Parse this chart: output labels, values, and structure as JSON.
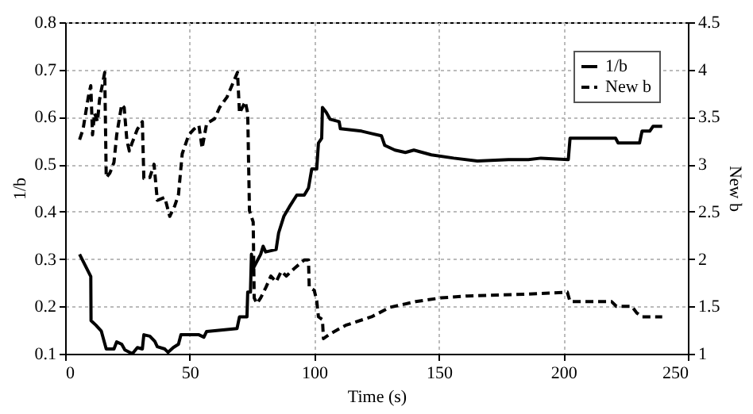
{
  "chart_data": {
    "type": "line",
    "xlabel": "Time (s)",
    "ylabel": "1/b",
    "y2label": "New b",
    "xlim": [
      0,
      250
    ],
    "xticks": [
      0,
      50,
      100,
      150,
      200,
      250
    ],
    "ylim": [
      0.1,
      0.8
    ],
    "yticks": [
      0.1,
      0.2,
      0.3,
      0.4,
      0.5,
      0.6,
      0.7,
      0.8
    ],
    "y2lim": [
      1,
      4.5
    ],
    "y2ticks": [
      1,
      1.5,
      2,
      2.5,
      3,
      3.5,
      4,
      4.5
    ],
    "grid": true,
    "legend": "top right",
    "series": [
      {
        "name": "1/b",
        "color": "#000000",
        "line_style": "solid",
        "x": [
          5.8,
          10.3,
          10.4,
          12.4,
          14.5,
          16.5,
          19.6,
          20.7,
          22.7,
          24,
          27,
          29,
          31,
          31.6,
          34,
          36,
          37,
          40,
          41.3,
          43.4,
          45.5,
          46.5,
          53.7,
          55.7,
          56.8,
          69,
          70,
          73,
          73.3,
          74.4,
          74.8,
          75.5,
          78.5,
          79.5,
          80.5,
          84.7,
          85.7,
          87.8,
          90,
          93,
          96,
          97.7,
          99,
          101,
          101.7,
          103,
          103.3,
          104.8,
          106.4,
          110,
          110.5,
          119,
          123,
          127,
          128.3,
          132.4,
          136.6,
          140,
          147,
          156,
          165.5,
          178,
          186,
          191,
          202,
          202.7,
          215,
          221,
          222,
          230.6,
          231.6,
          234.7,
          236,
          239.7
        ],
        "values": [
          0.31,
          0.263,
          0.17,
          0.16,
          0.148,
          0.11,
          0.11,
          0.125,
          0.12,
          0.108,
          0.1,
          0.113,
          0.11,
          0.14,
          0.137,
          0.126,
          0.115,
          0.11,
          0.103,
          0.113,
          0.12,
          0.14,
          0.14,
          0.135,
          0.147,
          0.153,
          0.178,
          0.178,
          0.23,
          0.23,
          0.31,
          0.28,
          0.31,
          0.327,
          0.315,
          0.32,
          0.355,
          0.39,
          0.41,
          0.435,
          0.435,
          0.45,
          0.49,
          0.49,
          0.545,
          0.555,
          0.62,
          0.61,
          0.595,
          0.59,
          0.575,
          0.57,
          0.565,
          0.56,
          0.54,
          0.53,
          0.525,
          0.53,
          0.52,
          0.513,
          0.507,
          0.51,
          0.51,
          0.513,
          0.51,
          0.555,
          0.555,
          0.555,
          0.545,
          0.545,
          0.57,
          0.57,
          0.58,
          0.58
        ]
      },
      {
        "name": "New b",
        "color": "#000000",
        "line_style": "dashed",
        "axis": "y2",
        "x": [
          5.8,
          7.2,
          9.3,
          10.3,
          11,
          11.8,
          13,
          13.8,
          15.9,
          16.5,
          18,
          19.6,
          20.7,
          22.7,
          23.7,
          24.8,
          25.8,
          26.8,
          29,
          31,
          31.6,
          34,
          35.7,
          37,
          40,
          42,
          44,
          45.5,
          47,
          49.6,
          51.7,
          53.7,
          55,
          56.8,
          60,
          62,
          65,
          69.2,
          70,
          72.3,
          73.3,
          74,
          75.5,
          75.9,
          77,
          78.5,
          80.6,
          82.6,
          84.7,
          86.8,
          88.8,
          92,
          96,
          97.7,
          98,
          100,
          101,
          101.7,
          103.3,
          103.7,
          106.4,
          112.6,
          123,
          130.4,
          140.7,
          151,
          161.4,
          173.8,
          186,
          201.6,
          202.7,
          211,
          219.4,
          221.3,
          227.5,
          229.5,
          231.6,
          239.7
        ],
        "values": [
          3.26,
          3.37,
          3.71,
          3.83,
          3.31,
          3.54,
          3.45,
          3.68,
          3.97,
          2.86,
          2.91,
          3.02,
          3.31,
          3.63,
          3.6,
          3.25,
          3.14,
          3.22,
          3.37,
          3.45,
          2.85,
          2.86,
          3.0,
          2.62,
          2.65,
          2.45,
          2.56,
          2.68,
          3.11,
          3.31,
          3.37,
          3.41,
          3.17,
          3.43,
          3.48,
          3.6,
          3.71,
          3.97,
          3.54,
          3.66,
          3.54,
          2.51,
          2.39,
          1.59,
          1.53,
          1.59,
          1.7,
          1.82,
          1.76,
          1.87,
          1.82,
          1.9,
          1.99,
          1.99,
          1.7,
          1.67,
          1.56,
          1.39,
          1.36,
          1.16,
          1.21,
          1.3,
          1.39,
          1.49,
          1.55,
          1.59,
          1.61,
          1.62,
          1.63,
          1.65,
          1.55,
          1.55,
          1.55,
          1.5,
          1.5,
          1.43,
          1.39,
          1.39
        ]
      }
    ]
  }
}
